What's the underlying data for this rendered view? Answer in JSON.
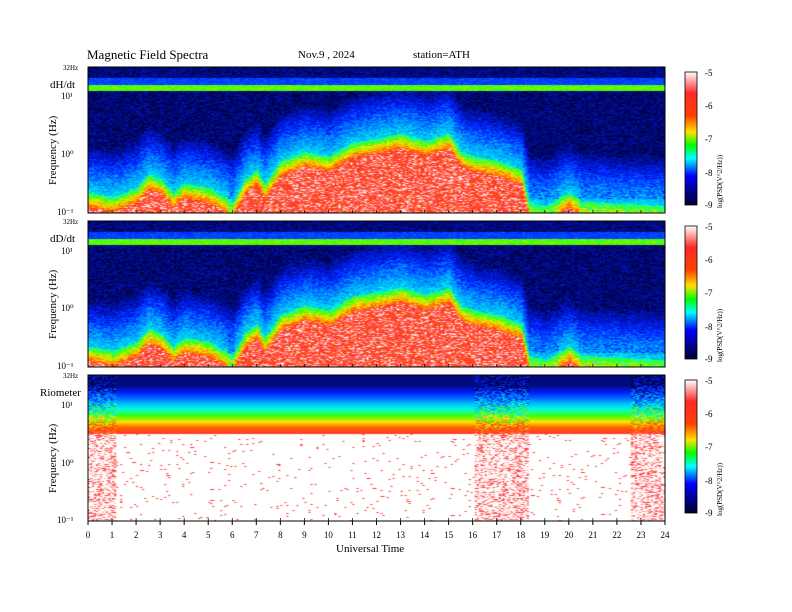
{
  "header": {
    "title": "Magnetic Field Spectra",
    "date": "Nov.9 , 2024",
    "station": "station=ATH"
  },
  "chart_data": {
    "type": "heatmap",
    "xlabel": "Universal Time",
    "x_ticks": [
      "0",
      "1",
      "2",
      "3",
      "4",
      "5",
      "6",
      "7",
      "8",
      "9",
      "10",
      "11",
      "12",
      "13",
      "14",
      "15",
      "16",
      "17",
      "18",
      "19",
      "20",
      "21",
      "22",
      "23",
      "24"
    ],
    "xlim": [
      0,
      24
    ],
    "color_scale": {
      "ticks": [
        "-5",
        "-6",
        "-7",
        "-8",
        "-9"
      ],
      "range": [
        -9,
        -5
      ],
      "colormap": [
        "#ffffff",
        "#ff0000",
        "#ffff00",
        "#00ff00",
        "#00ffff",
        "#0000ff",
        "#000040"
      ]
    },
    "panels": [
      {
        "name": "dH/dt",
        "ylabel": "Frequency  (Hz)",
        "y_ticks": [
          "10¹",
          "10⁰",
          "10⁻¹"
        ],
        "top_label": "32Hz",
        "ylim_hz": [
          0.1,
          32
        ],
        "cbar_label": "log(PSD(V^2/Hz))"
      },
      {
        "name": "dD/dt",
        "ylabel": "Frequency  (Hz)",
        "y_ticks": [
          "10¹",
          "10⁰",
          "10⁻¹"
        ],
        "top_label": "32Hz",
        "ylim_hz": [
          0.1,
          32
        ],
        "cbar_label": "log(PSD(V^2/Hz))"
      },
      {
        "name": "Riometer",
        "ylabel": "Frequency  (Hz)",
        "y_ticks": [
          "10¹",
          "10⁰",
          "10⁻¹"
        ],
        "top_label": "32Hz",
        "ylim_hz": [
          0.1,
          32
        ],
        "cbar_label": "log(PSD(V^2/Hz))"
      }
    ]
  }
}
